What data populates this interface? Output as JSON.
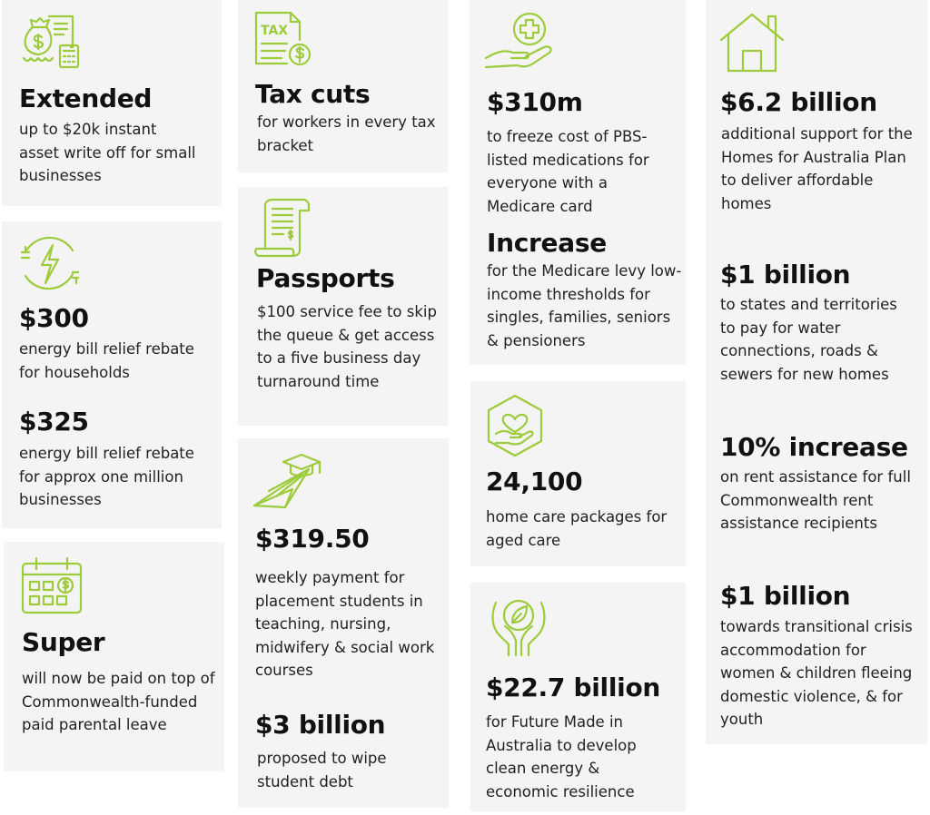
{
  "accent": "#9ccb3b",
  "card_background": "#f5f4f4",
  "col1": {
    "card1": {
      "icon": "money-bag-calculator-icon",
      "head": "Extended",
      "text": "up to $20k instant asset write off for small businesses"
    },
    "card2": {
      "icon": "energy-plug-icon",
      "head1": "$300",
      "text1": "energy bill relief rebate for households",
      "head2": "$325",
      "text2": "energy bill relief rebate for approx one million businesses"
    },
    "card3": {
      "icon": "calendar-dollar-icon",
      "head": "Super",
      "text": "will now be paid on top of Commonwealth-funded paid parental leave"
    }
  },
  "col2": {
    "card1": {
      "icon": "tax-document-icon",
      "icon_label": "TAX",
      "head": "Tax cuts",
      "text": "for workers in every tax bracket"
    },
    "card2": {
      "icon": "receipt-scroll-icon",
      "head": "Passports",
      "text": "$100 service fee to skip the queue & get access to a five business day turnaround time"
    },
    "card3": {
      "icon": "paper-plane-graduation-icon",
      "head1": "$319.50",
      "text1": "weekly payment for placement students in teaching, nursing, midwifery & social work courses",
      "head2": "$3 billion",
      "text2": "proposed to wipe student debt"
    }
  },
  "col3": {
    "card1": {
      "icon": "hand-medical-cross-icon",
      "head1": "$310m",
      "text1": "to freeze cost of PBS-listed medications for everyone with a Medicare card",
      "head2": "Increase",
      "text2": "for the Medicare levy low-income thresholds for singles, families, seniors & pensioners"
    },
    "card2": {
      "icon": "hexagon-hand-heart-icon",
      "head": "24,100",
      "text": "home care packages for aged care"
    },
    "card3": {
      "icon": "hands-leaf-globe-icon",
      "head": "$22.7 billion",
      "text": "for Future Made in Australia to develop clean energy & economic resilience"
    }
  },
  "col4": {
    "card1": {
      "icon": "house-icon",
      "head1": "$6.2 billion",
      "text1": "additional support for the Homes for Australia Plan to deliver affordable homes",
      "head2": "$1 billion",
      "text2": "to states and territories to pay for water connections, roads & sewers for new homes",
      "head3": "10% increase",
      "text3": "on rent assistance for full Commonwealth rent assistance recipients",
      "head4": "$1 billion",
      "text4": "towards transitional crisis accommodation for women & children fleeing domestic violence, & for youth"
    }
  }
}
